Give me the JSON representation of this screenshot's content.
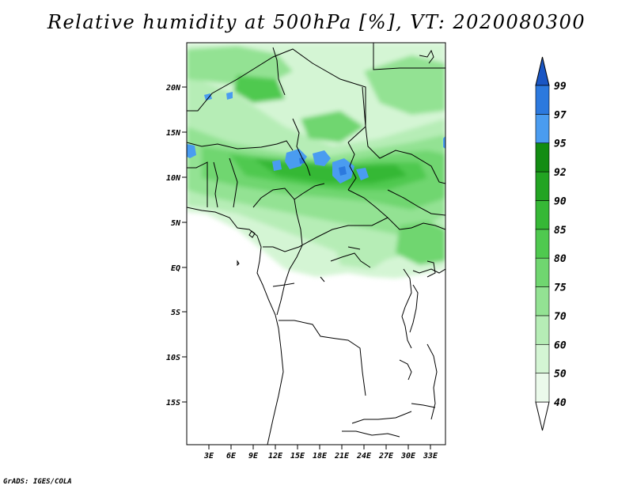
{
  "title": "Relative humidity at 500hPa [%], VT: 2020080300",
  "credit": "GrADS: IGES/COLA",
  "map": {
    "lat_labels": [
      "20N",
      "15N",
      "10N",
      "5N",
      "EQ",
      "5S",
      "10S",
      "15S"
    ],
    "lon_labels": [
      "3E",
      "6E",
      "9E",
      "12E",
      "15E",
      "18E",
      "21E",
      "24E",
      "27E",
      "30E",
      "33E"
    ]
  },
  "colorbar": {
    "levels": [
      "40",
      "50",
      "60",
      "70",
      "75",
      "80",
      "85",
      "90",
      "92",
      "95",
      "97",
      "99"
    ],
    "colors": [
      "#ebfaeb",
      "#d4f5d4",
      "#b6edb6",
      "#93e293",
      "#70d670",
      "#4fc94f",
      "#36b836",
      "#22a422",
      "#128c12",
      "#4a9cf0",
      "#2c79de",
      "#1a56c4"
    ]
  }
}
